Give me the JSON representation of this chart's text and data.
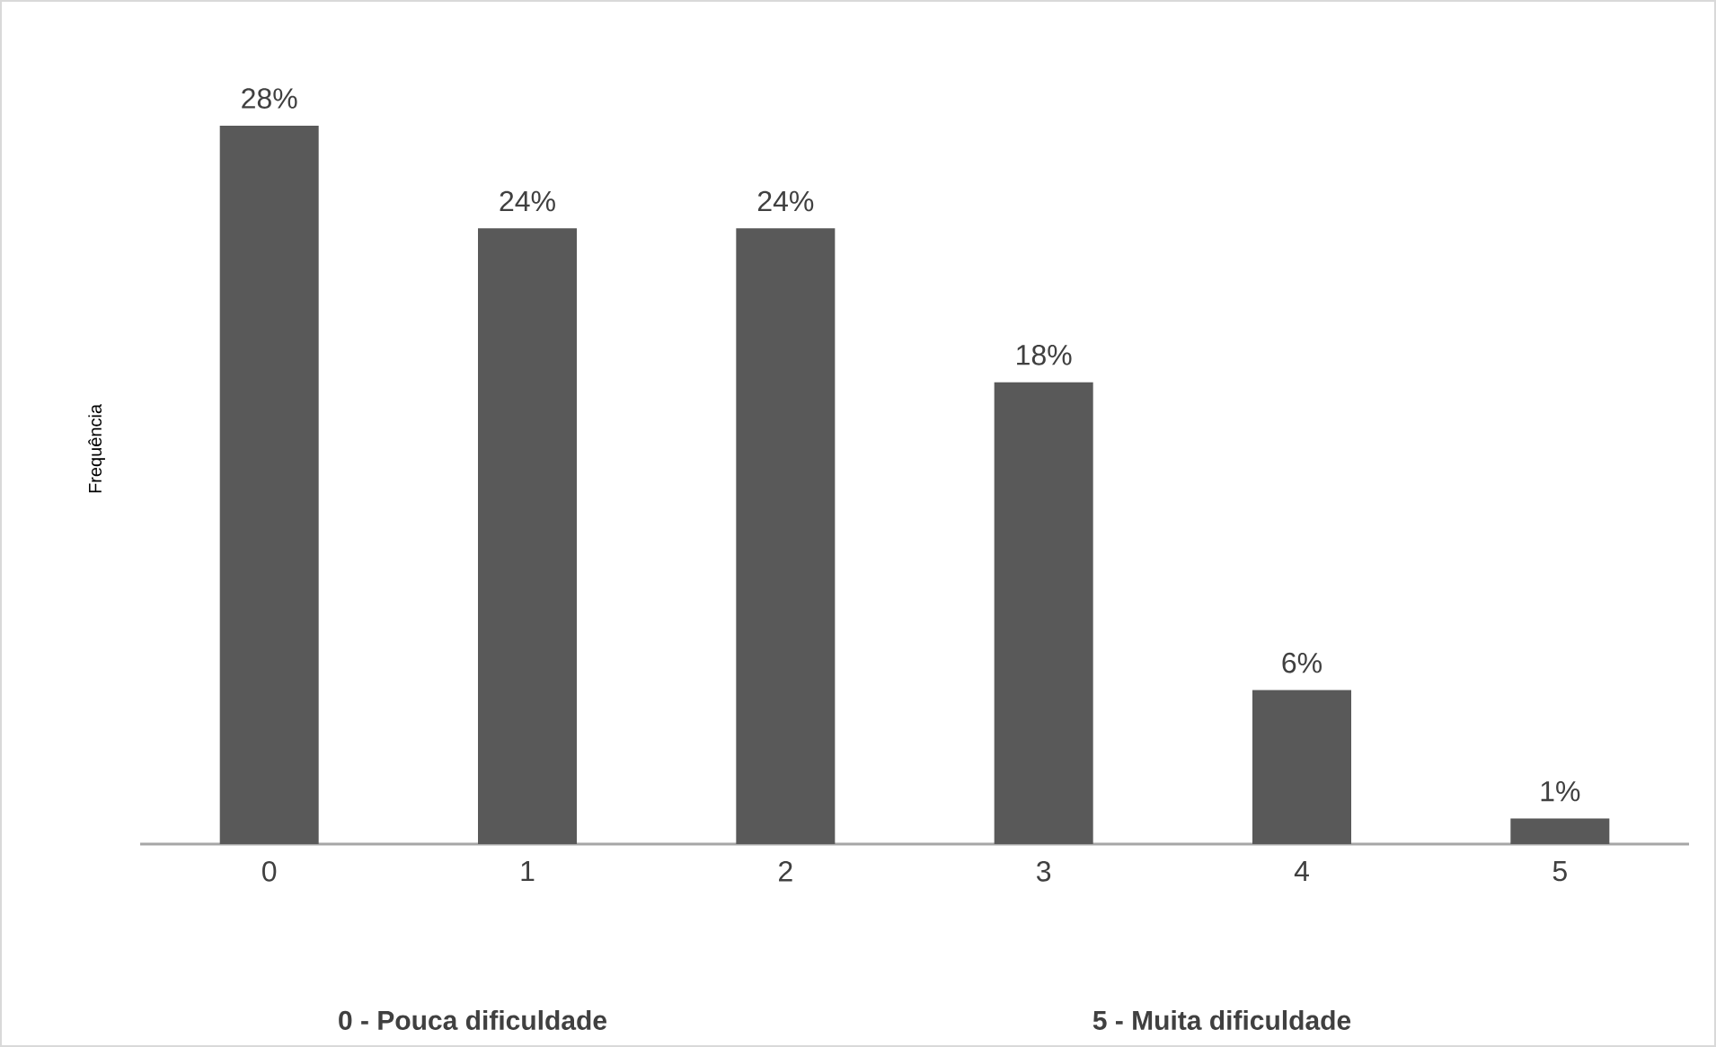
{
  "chart_data": {
    "type": "bar",
    "ylabel": "Frequência",
    "categories": [
      "0",
      "1",
      "2",
      "3",
      "4",
      "5"
    ],
    "values": [
      28,
      24,
      24,
      18,
      6,
      1
    ],
    "value_labels": [
      "28%",
      "24%",
      "24%",
      "18%",
      "6%",
      "1%"
    ],
    "color": "#595959",
    "annotations": [
      "0 - Pouca dificuldade",
      "5 - Muita dificuldade"
    ]
  }
}
